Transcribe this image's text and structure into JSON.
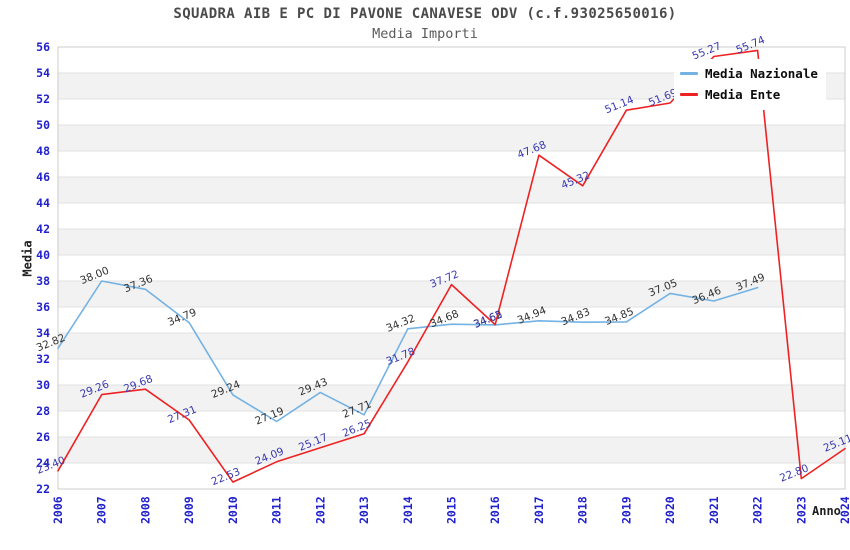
{
  "chart_data": {
    "type": "line",
    "title": "SQUADRA AIB E PC DI PAVONE CANAVESE ODV (c.f.93025650016)",
    "subtitle": "Media Importi",
    "xlabel": "Anno",
    "ylabel": "Media",
    "ylim": [
      22,
      56
    ],
    "ytick_step": 2,
    "grid": "horizontal-bands-alternating",
    "legend_position": "top-right",
    "x": [
      2006,
      2007,
      2008,
      2009,
      2010,
      2011,
      2012,
      2013,
      2014,
      2015,
      2016,
      2017,
      2018,
      2019,
      2020,
      2021,
      2022,
      2023,
      2024
    ],
    "series": [
      {
        "name": "Media Nazionale",
        "color": "#74b2e4",
        "label_color": "#333333",
        "values": [
          32.82,
          38.0,
          37.36,
          34.79,
          29.24,
          27.19,
          29.43,
          27.71,
          34.32,
          34.68,
          34.62,
          34.94,
          34.83,
          34.85,
          37.05,
          36.46,
          37.49,
          null,
          null
        ]
      },
      {
        "name": "Media Ente",
        "color": "#ee2222",
        "label_color": "#3939b0",
        "values": [
          23.4,
          29.26,
          29.68,
          27.31,
          22.53,
          24.09,
          25.17,
          26.25,
          31.78,
          37.72,
          34.65,
          47.68,
          45.32,
          51.14,
          51.69,
          55.27,
          55.74,
          22.8,
          25.11
        ]
      }
    ],
    "colors": {
      "band": "#f2f2f2",
      "grid": "#e2e2e2",
      "border": "#cccccc",
      "tick_text": "#2222cc"
    }
  }
}
